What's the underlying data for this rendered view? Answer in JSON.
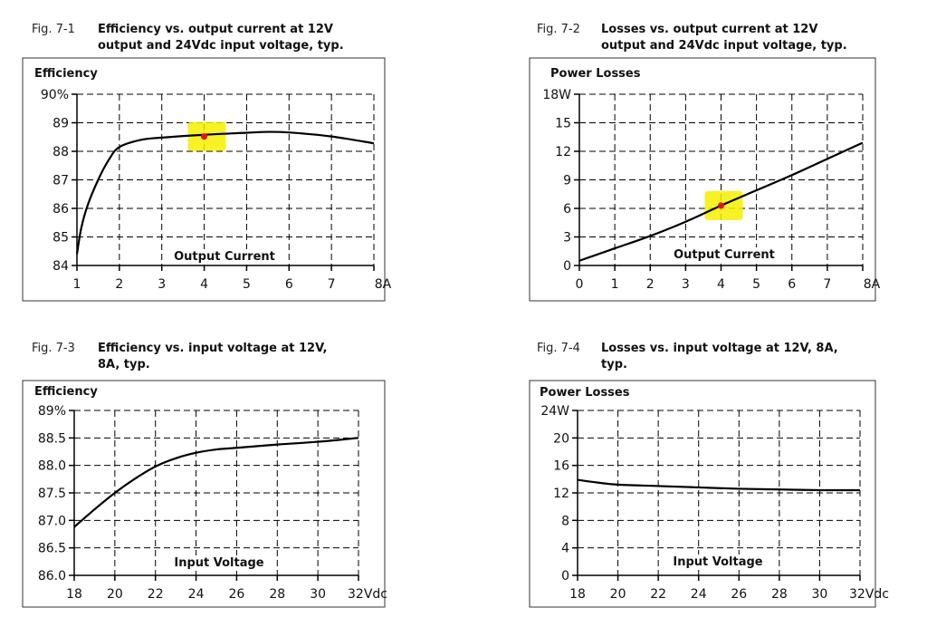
{
  "chart_data": [
    {
      "type": "line",
      "fig_label": "Fig. 7-1",
      "title": [
        "Efficiency vs. output current at 12V",
        "output and 24Vdc input voltage, typ."
      ],
      "ylabel": "Efficiency",
      "xlabel": "Output Current",
      "xlim": [
        1,
        8
      ],
      "ylim": [
        84,
        90
      ],
      "x_ticks": [
        1,
        2,
        3,
        4,
        5,
        6,
        7,
        8
      ],
      "x_tick_labels": [
        "1",
        "2",
        "3",
        "4",
        "5",
        "6",
        "7",
        "8A"
      ],
      "y_ticks": [
        84,
        85,
        86,
        87,
        88,
        89,
        90
      ],
      "y_tick_labels": [
        "84",
        "85",
        "86",
        "87",
        "88",
        "89",
        "90%"
      ],
      "grid": true,
      "series": [
        {
          "x": [
            1,
            1.1,
            1.25,
            1.5,
            1.75,
            2,
            2.5,
            3,
            4,
            5,
            5.5,
            6,
            7,
            8
          ],
          "y": [
            84.4,
            85.3,
            86.1,
            87.0,
            87.7,
            88.15,
            88.4,
            88.48,
            88.58,
            88.65,
            88.68,
            88.66,
            88.52,
            88.28
          ]
        }
      ],
      "marker": {
        "x": 4,
        "y": 88.52,
        "color": "#e2141a",
        "highlight": "#f5f000"
      }
    },
    {
      "type": "line",
      "fig_label": "Fig. 7-2",
      "title": [
        "Losses vs. output current at 12V",
        "output and 24Vdc input voltage, typ."
      ],
      "ylabel": "Power Losses",
      "xlabel": "Output Current",
      "xlim": [
        0,
        8
      ],
      "ylim": [
        0,
        18
      ],
      "x_ticks": [
        0,
        1,
        2,
        3,
        4,
        5,
        6,
        7,
        8
      ],
      "x_tick_labels": [
        "0",
        "1",
        "2",
        "3",
        "4",
        "5",
        "6",
        "7",
        "8A"
      ],
      "y_ticks": [
        0,
        3,
        6,
        9,
        12,
        15,
        18
      ],
      "y_tick_labels": [
        "0",
        "3",
        "6",
        "9",
        "12",
        "15",
        "18W"
      ],
      "grid": true,
      "series": [
        {
          "x": [
            0,
            1,
            2,
            3,
            4,
            5,
            6,
            7,
            8
          ],
          "y": [
            0.5,
            1.8,
            3.1,
            4.6,
            6.3,
            7.9,
            9.5,
            11.2,
            12.9
          ]
        }
      ],
      "marker": {
        "x": 4,
        "y": 6.3,
        "color": "#e2141a",
        "highlight": "#f5f000"
      }
    },
    {
      "type": "line",
      "fig_label": "Fig. 7-3",
      "title": [
        "Efficiency vs. input voltage at 12V,",
        "8A, typ."
      ],
      "ylabel": "Efficiency",
      "xlabel": "Input Voltage",
      "xlim": [
        18,
        32
      ],
      "ylim": [
        86.0,
        89.0
      ],
      "x_ticks": [
        18,
        20,
        22,
        24,
        26,
        28,
        30,
        32
      ],
      "x_tick_labels": [
        "18",
        "20",
        "22",
        "24",
        "26",
        "28",
        "30",
        "32Vdc"
      ],
      "y_ticks": [
        86.0,
        86.5,
        87.0,
        87.5,
        88.0,
        88.5,
        89.0
      ],
      "y_tick_labels": [
        "86.0",
        "86.5",
        "87.0",
        "87.5",
        "88.0",
        "88.5",
        "89%"
      ],
      "grid": true,
      "series": [
        {
          "x": [
            18,
            19,
            20,
            21,
            22,
            23,
            24,
            25,
            26,
            28,
            30,
            32
          ],
          "y": [
            86.88,
            87.2,
            87.5,
            87.76,
            87.98,
            88.13,
            88.23,
            88.29,
            88.32,
            88.38,
            88.43,
            88.5
          ]
        }
      ]
    },
    {
      "type": "line",
      "fig_label": "Fig. 7-4",
      "title": [
        "Losses vs. input voltage at 12V, 8A,",
        "typ."
      ],
      "ylabel": "Power Losses",
      "xlabel": "Input Voltage",
      "xlim": [
        18,
        32
      ],
      "ylim": [
        0,
        24
      ],
      "x_ticks": [
        18,
        20,
        22,
        24,
        26,
        28,
        30,
        32
      ],
      "x_tick_labels": [
        "18",
        "20",
        "22",
        "24",
        "26",
        "28",
        "30",
        "32Vdc"
      ],
      "y_ticks": [
        0,
        4,
        8,
        12,
        16,
        20,
        24
      ],
      "y_tick_labels": [
        "0",
        "4",
        "8",
        "12",
        "16",
        "20",
        "24W"
      ],
      "grid": true,
      "series": [
        {
          "x": [
            18,
            19,
            20,
            22,
            24,
            26,
            28,
            30,
            32
          ],
          "y": [
            13.9,
            13.5,
            13.2,
            13.0,
            12.8,
            12.6,
            12.5,
            12.4,
            12.4
          ]
        }
      ]
    }
  ]
}
